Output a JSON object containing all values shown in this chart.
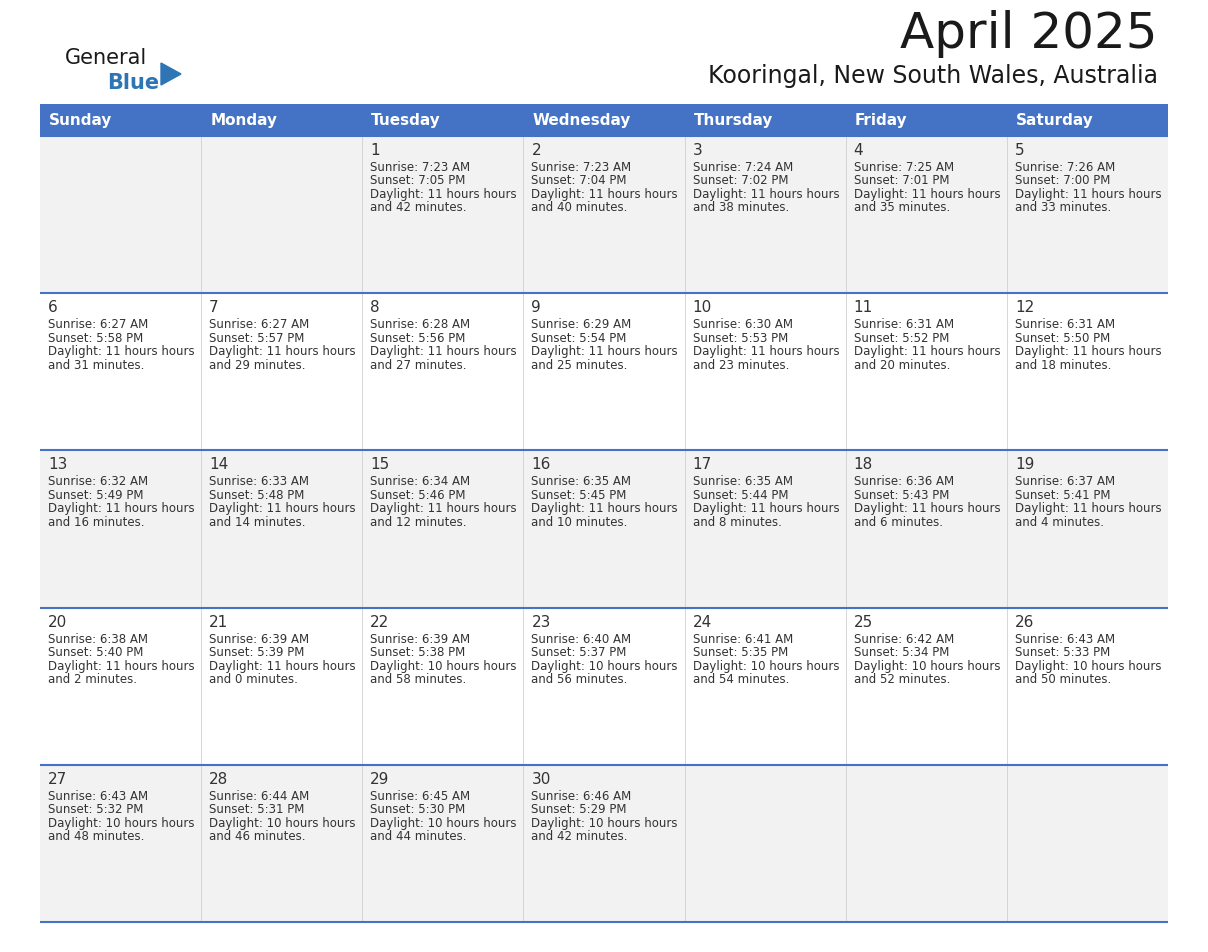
{
  "title": "April 2025",
  "subtitle": "Kooringal, New South Wales, Australia",
  "header_bg": "#4472C4",
  "header_text_color": "#FFFFFF",
  "header_font_size": 11,
  "day_names": [
    "Sunday",
    "Monday",
    "Tuesday",
    "Wednesday",
    "Thursday",
    "Friday",
    "Saturday"
  ],
  "title_fontsize": 36,
  "subtitle_fontsize": 17,
  "cell_text_fontsize": 8.5,
  "day_num_fontsize": 11,
  "row_colors": [
    "#F2F2F2",
    "#FFFFFF",
    "#F2F2F2",
    "#FFFFFF",
    "#F2F2F2"
  ],
  "grid_line_color": "#4472C4",
  "text_color": "#333333",
  "logo_general_color": "#1a1a1a",
  "logo_blue_color": "#2E75B6",
  "logo_triangle_color": "#2E75B6",
  "weeks": [
    {
      "days": [
        {
          "day": null,
          "data": null
        },
        {
          "day": null,
          "data": null
        },
        {
          "day": 1,
          "data": {
            "sunrise": "7:23 AM",
            "sunset": "7:05 PM",
            "daylight": "11 hours and 42 minutes"
          }
        },
        {
          "day": 2,
          "data": {
            "sunrise": "7:23 AM",
            "sunset": "7:04 PM",
            "daylight": "11 hours and 40 minutes"
          }
        },
        {
          "day": 3,
          "data": {
            "sunrise": "7:24 AM",
            "sunset": "7:02 PM",
            "daylight": "11 hours and 38 minutes"
          }
        },
        {
          "day": 4,
          "data": {
            "sunrise": "7:25 AM",
            "sunset": "7:01 PM",
            "daylight": "11 hours and 35 minutes"
          }
        },
        {
          "day": 5,
          "data": {
            "sunrise": "7:26 AM",
            "sunset": "7:00 PM",
            "daylight": "11 hours and 33 minutes"
          }
        }
      ]
    },
    {
      "days": [
        {
          "day": 6,
          "data": {
            "sunrise": "6:27 AM",
            "sunset": "5:58 PM",
            "daylight": "11 hours and 31 minutes"
          }
        },
        {
          "day": 7,
          "data": {
            "sunrise": "6:27 AM",
            "sunset": "5:57 PM",
            "daylight": "11 hours and 29 minutes"
          }
        },
        {
          "day": 8,
          "data": {
            "sunrise": "6:28 AM",
            "sunset": "5:56 PM",
            "daylight": "11 hours and 27 minutes"
          }
        },
        {
          "day": 9,
          "data": {
            "sunrise": "6:29 AM",
            "sunset": "5:54 PM",
            "daylight": "11 hours and 25 minutes"
          }
        },
        {
          "day": 10,
          "data": {
            "sunrise": "6:30 AM",
            "sunset": "5:53 PM",
            "daylight": "11 hours and 23 minutes"
          }
        },
        {
          "day": 11,
          "data": {
            "sunrise": "6:31 AM",
            "sunset": "5:52 PM",
            "daylight": "11 hours and 20 minutes"
          }
        },
        {
          "day": 12,
          "data": {
            "sunrise": "6:31 AM",
            "sunset": "5:50 PM",
            "daylight": "11 hours and 18 minutes"
          }
        }
      ]
    },
    {
      "days": [
        {
          "day": 13,
          "data": {
            "sunrise": "6:32 AM",
            "sunset": "5:49 PM",
            "daylight": "11 hours and 16 minutes"
          }
        },
        {
          "day": 14,
          "data": {
            "sunrise": "6:33 AM",
            "sunset": "5:48 PM",
            "daylight": "11 hours and 14 minutes"
          }
        },
        {
          "day": 15,
          "data": {
            "sunrise": "6:34 AM",
            "sunset": "5:46 PM",
            "daylight": "11 hours and 12 minutes"
          }
        },
        {
          "day": 16,
          "data": {
            "sunrise": "6:35 AM",
            "sunset": "5:45 PM",
            "daylight": "11 hours and 10 minutes"
          }
        },
        {
          "day": 17,
          "data": {
            "sunrise": "6:35 AM",
            "sunset": "5:44 PM",
            "daylight": "11 hours and 8 minutes"
          }
        },
        {
          "day": 18,
          "data": {
            "sunrise": "6:36 AM",
            "sunset": "5:43 PM",
            "daylight": "11 hours and 6 minutes"
          }
        },
        {
          "day": 19,
          "data": {
            "sunrise": "6:37 AM",
            "sunset": "5:41 PM",
            "daylight": "11 hours and 4 minutes"
          }
        }
      ]
    },
    {
      "days": [
        {
          "day": 20,
          "data": {
            "sunrise": "6:38 AM",
            "sunset": "5:40 PM",
            "daylight": "11 hours and 2 minutes"
          }
        },
        {
          "day": 21,
          "data": {
            "sunrise": "6:39 AM",
            "sunset": "5:39 PM",
            "daylight": "11 hours and 0 minutes"
          }
        },
        {
          "day": 22,
          "data": {
            "sunrise": "6:39 AM",
            "sunset": "5:38 PM",
            "daylight": "10 hours and 58 minutes"
          }
        },
        {
          "day": 23,
          "data": {
            "sunrise": "6:40 AM",
            "sunset": "5:37 PM",
            "daylight": "10 hours and 56 minutes"
          }
        },
        {
          "day": 24,
          "data": {
            "sunrise": "6:41 AM",
            "sunset": "5:35 PM",
            "daylight": "10 hours and 54 minutes"
          }
        },
        {
          "day": 25,
          "data": {
            "sunrise": "6:42 AM",
            "sunset": "5:34 PM",
            "daylight": "10 hours and 52 minutes"
          }
        },
        {
          "day": 26,
          "data": {
            "sunrise": "6:43 AM",
            "sunset": "5:33 PM",
            "daylight": "10 hours and 50 minutes"
          }
        }
      ]
    },
    {
      "days": [
        {
          "day": 27,
          "data": {
            "sunrise": "6:43 AM",
            "sunset": "5:32 PM",
            "daylight": "10 hours and 48 minutes"
          }
        },
        {
          "day": 28,
          "data": {
            "sunrise": "6:44 AM",
            "sunset": "5:31 PM",
            "daylight": "10 hours and 46 minutes"
          }
        },
        {
          "day": 29,
          "data": {
            "sunrise": "6:45 AM",
            "sunset": "5:30 PM",
            "daylight": "10 hours and 44 minutes"
          }
        },
        {
          "day": 30,
          "data": {
            "sunrise": "6:46 AM",
            "sunset": "5:29 PM",
            "daylight": "10 hours and 42 minutes"
          }
        },
        {
          "day": null,
          "data": null
        },
        {
          "day": null,
          "data": null
        },
        {
          "day": null,
          "data": null
        }
      ]
    }
  ]
}
